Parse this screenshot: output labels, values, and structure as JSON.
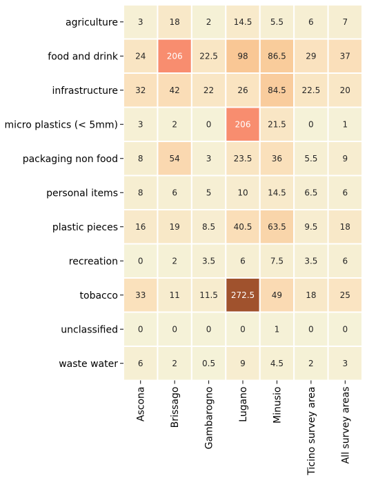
{
  "chart_data": {
    "type": "heatmap",
    "title": "",
    "xlabel": "",
    "ylabel": "",
    "rows": [
      "agriculture",
      "food and drink",
      "infrastructure",
      "micro plastics (< 5mm)",
      "packaging non food",
      "personal items",
      "plastic pieces",
      "recreation",
      "tobacco",
      "unclassified",
      "waste water"
    ],
    "columns": [
      "Ascona",
      "Brissago",
      "Gambarogno",
      "Lugano",
      "Minusio",
      "Ticino survey area",
      "All survey areas"
    ],
    "values": [
      [
        3,
        18,
        2,
        14.5,
        5.5,
        6,
        7
      ],
      [
        24,
        206,
        22.5,
        98,
        86.5,
        29,
        37
      ],
      [
        32,
        42,
        22,
        26,
        84.5,
        22.5,
        20
      ],
      [
        3,
        2,
        0,
        206,
        21.5,
        0,
        1
      ],
      [
        8,
        54,
        3,
        23.5,
        36,
        5.5,
        9
      ],
      [
        8,
        6,
        5,
        10,
        14.5,
        6.5,
        6
      ],
      [
        16,
        19,
        8.5,
        40.5,
        63.5,
        9.5,
        18
      ],
      [
        0,
        2,
        3.5,
        6,
        7.5,
        3.5,
        6
      ],
      [
        33,
        11,
        11.5,
        272.5,
        49,
        18,
        25
      ],
      [
        0,
        0,
        0,
        0,
        1,
        0,
        0
      ],
      [
        6,
        2,
        0.5,
        9,
        4.5,
        2,
        3
      ]
    ],
    "colormap": {
      "low": "#f5f2d8",
      "mid1": "#fae3c0",
      "mid2": "#f9c896",
      "high1": "#f88c6f",
      "max": "#a0522d"
    },
    "grid_line_color": "#ffffff"
  }
}
